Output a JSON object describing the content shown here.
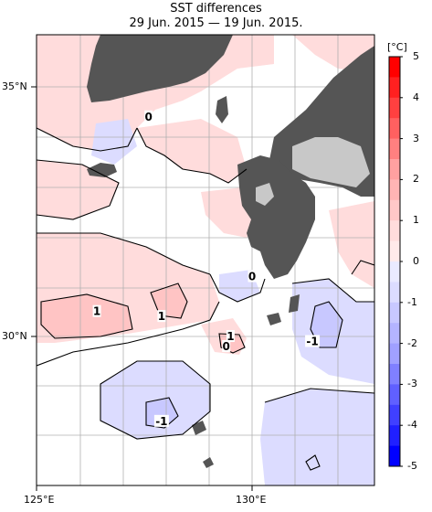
{
  "title": "SST differences",
  "subtitle": "29 Jun. 2015 — 19 Jun. 2015.",
  "axes": {
    "lat_labels": [
      "35°N",
      "30°N"
    ],
    "lon_labels": [
      "125°E",
      "130°E"
    ]
  },
  "colorbar": {
    "unit": "[°C]",
    "ticks": [
      "5",
      "4",
      "3",
      "2",
      "1",
      "0",
      "-1",
      "-2",
      "-3",
      "-4",
      "-5"
    ],
    "colors_positive": [
      "#ff0000",
      "#ff2020",
      "#ff4040",
      "#ff6060",
      "#ff8080",
      "#ffa0a0",
      "#ffb4b4",
      "#ffc8c8",
      "#ffdcdc",
      "#ffeaea"
    ],
    "colors_negative": [
      "#eaeaff",
      "#dcdcff",
      "#c8c8ff",
      "#b4b4ff",
      "#a0a0ff",
      "#8080ff",
      "#6060ff",
      "#4040ff",
      "#2020ff",
      "#0000ff"
    ]
  },
  "contour_labels": [
    {
      "text": "0",
      "lon": 127.6,
      "lat": 34.4
    },
    {
      "text": "0",
      "lon": 130.0,
      "lat": 31.2
    },
    {
      "text": "0",
      "lon": 129.4,
      "lat": 29.8
    },
    {
      "text": "1",
      "lon": 126.4,
      "lat": 30.5
    },
    {
      "text": "1",
      "lon": 127.9,
      "lat": 30.4
    },
    {
      "text": "1",
      "lon": 129.5,
      "lat": 30.0
    },
    {
      "text": "-1",
      "lon": 131.4,
      "lat": 29.9
    },
    {
      "text": "-1",
      "lon": 127.9,
      "lat": 28.3
    }
  ],
  "colors": {
    "land": "#555555",
    "coast_light": "#c8c8c8",
    "pos_fill": "#ffdcdc",
    "pos_fill2": "#ffc4c4",
    "neg_fill": "#dcdcff",
    "neg_fill2": "#c8c8ff"
  }
}
